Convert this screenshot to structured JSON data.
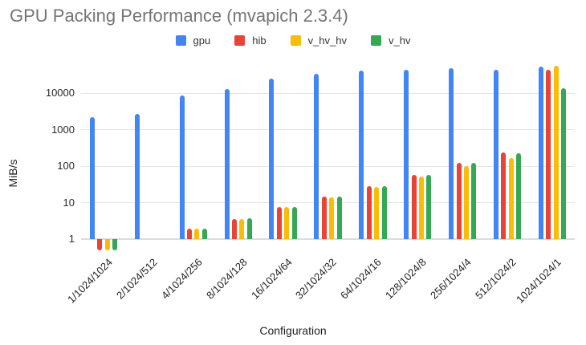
{
  "chart_data": {
    "type": "bar",
    "title": "GPU Packing Performance (mvapich 2.3.4)",
    "xlabel": "Configuration",
    "ylabel": "MiB/s",
    "yscale": "log",
    "ylim": [
      0.48,
      70000
    ],
    "yticks": [
      1,
      10,
      100,
      1000,
      10000
    ],
    "baseline": 1,
    "grid": true,
    "legend_position": "top",
    "categories": [
      "1/1024/1024",
      "2/1024/512",
      "4/1024/256",
      "8/1024/128",
      "16/1024/64",
      "32/1024/32",
      "64/1024/16",
      "128/1024/8",
      "256/1024/4",
      "512/1024/2",
      "1024/1024/1"
    ],
    "series": [
      {
        "name": "gpu",
        "color": "#4285F4",
        "values": [
          2250,
          2800,
          8600,
          13200,
          25000,
          35000,
          43000,
          45500,
          49500,
          45000,
          54000
        ]
      },
      {
        "name": "hib",
        "color": "#EA4335",
        "values": [
          0.5,
          null,
          2,
          3.6,
          7.6,
          15,
          29,
          60,
          125,
          245,
          45000
        ]
      },
      {
        "name": "v_hv_hv",
        "color": "#FBBC04",
        "values": [
          0.5,
          null,
          2,
          3.6,
          7.8,
          14,
          27,
          52,
          105,
          170,
          56000
        ]
      },
      {
        "name": "v_hv",
        "color": "#34A853",
        "values": [
          0.5,
          null,
          2,
          3.8,
          7.6,
          15,
          29,
          60,
          128,
          225,
          14000
        ]
      }
    ]
  },
  "colors": {
    "title": "#757575",
    "axis_text": "#2a2a2a",
    "gridline": "#e6e6e6",
    "baseline_line": "#dadce0",
    "background": "#ffffff"
  }
}
